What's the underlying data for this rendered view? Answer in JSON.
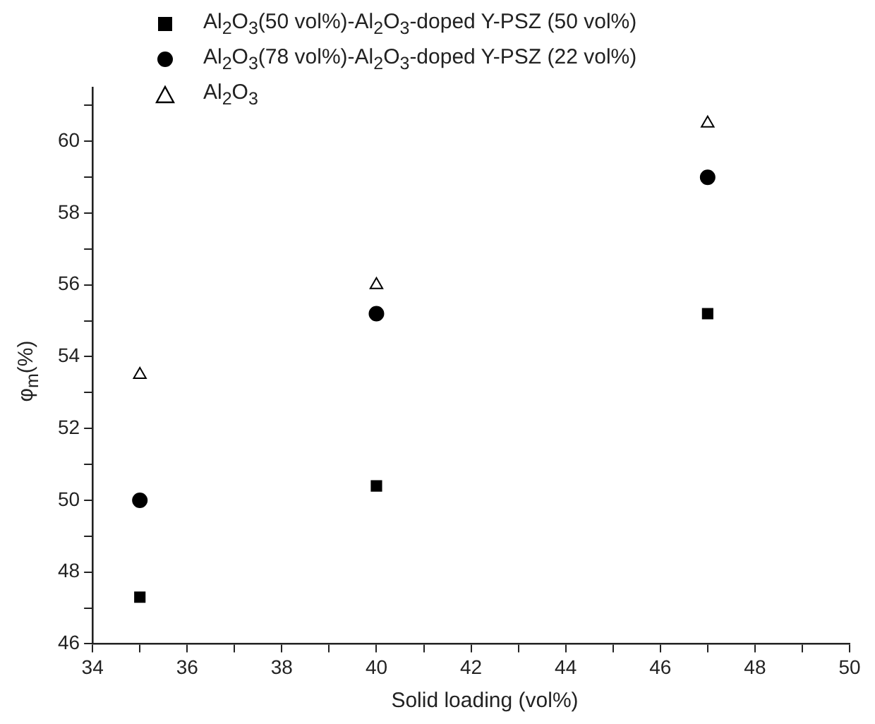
{
  "chart_data": {
    "type": "scatter",
    "xlabel": "Solid loading (vol%)",
    "ylabel": "φ$_{m}$(%)",
    "legend": "top",
    "x": [
      35,
      40,
      47
    ],
    "series": [
      {
        "name": "Al$_{2}$O$_{3}$(50 vol%)-Al$_{2}$O$_{3}$-doped Y-PSZ (50 vol%)",
        "color": "#000000",
        "marker": "square",
        "values": [
          47.3,
          50.4,
          55.2
        ]
      },
      {
        "name": "Al$_{2}$O$_{3}$(78 vol%)-Al$_{2}$O$_{3}$-doped Y-PSZ (22 vol%)",
        "color": "#000000",
        "marker": "circle",
        "values": [
          50.0,
          55.2,
          59.0
        ]
      },
      {
        "name": "Al$_{2}$O$_{3}$",
        "color": "#000000",
        "marker": "triangle",
        "values": [
          53.5,
          56.0,
          60.5
        ]
      }
    ],
    "xlim": [
      34,
      50
    ],
    "xticks": [
      34,
      {
        "value": 35,
        "label": null
      },
      36,
      {
        "value": 37,
        "label": null
      },
      38,
      {
        "value": 39,
        "label": null
      },
      40,
      {
        "value": 41,
        "label": null
      },
      42,
      {
        "value": 43,
        "label": null
      },
      44,
      {
        "value": 45,
        "label": null
      },
      46,
      {
        "value": 47,
        "label": null
      },
      48,
      {
        "value": 49,
        "label": null
      },
      50
    ],
    "ylim": [
      46,
      61.5
    ],
    "yticks": [
      46,
      {
        "value": 47,
        "label": null
      },
      48,
      {
        "value": 49,
        "label": null
      },
      50,
      {
        "value": 51,
        "label": null
      },
      52,
      {
        "value": 53,
        "label": null
      },
      54,
      {
        "value": 55,
        "label": null
      },
      56,
      {
        "value": 57,
        "label": null
      },
      58,
      {
        "value": 59,
        "label": null
      },
      60,
      {
        "value": 61,
        "label": null
      }
    ],
    "grid": false
  }
}
